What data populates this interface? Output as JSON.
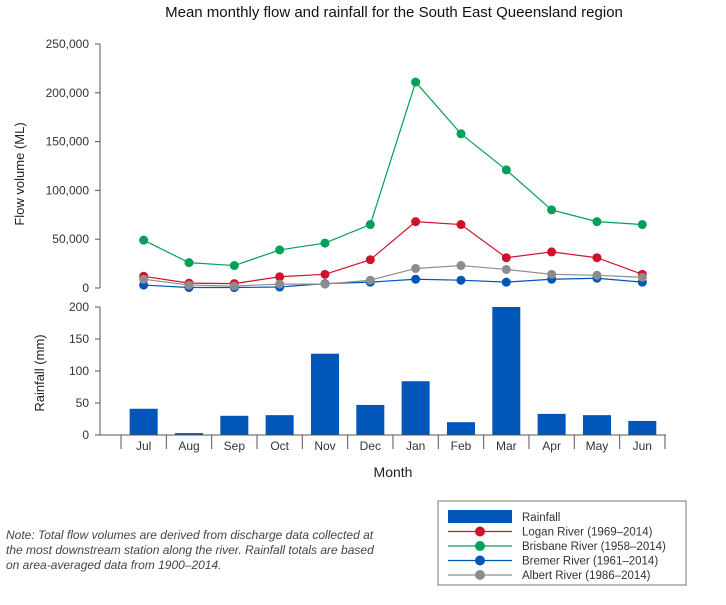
{
  "chart_data": {
    "type": "line+bar",
    "title": "Mean monthly flow and rainfall for the South East Queensland region",
    "categories": [
      "Jul",
      "Aug",
      "Sep",
      "Oct",
      "Nov",
      "Dec",
      "Jan",
      "Feb",
      "Mar",
      "Apr",
      "May",
      "Jun"
    ],
    "xlabel": "Month",
    "flow_panel": {
      "ylabel": "Flow volume (ML)",
      "ylim": [
        0,
        250000
      ],
      "yticks": [
        "0",
        "50,000",
        "100,000",
        "150,000",
        "200,000",
        "250,000"
      ],
      "series": [
        {
          "name": "Logan River (1969–2014)",
          "color": "#d0112b",
          "values": [
            12000,
            5000,
            4500,
            11500,
            14000,
            29000,
            68000,
            65000,
            31000,
            37000,
            31000,
            14000
          ]
        },
        {
          "name": "Brisbane River (1958–2014)",
          "color": "#00a05a",
          "values": [
            49000,
            26000,
            23000,
            39000,
            46000,
            65000,
            211000,
            158000,
            121000,
            80000,
            68000,
            65000
          ]
        },
        {
          "name": "Bremer River (1961–2014)",
          "color": "#0055b8",
          "values": [
            3000,
            500,
            500,
            1000,
            4500,
            6000,
            9000,
            8000,
            6000,
            9000,
            10000,
            6000
          ]
        },
        {
          "name": "Albert River (1986–2014)",
          "color": "#8c8c8c",
          "values": [
            9000,
            3000,
            2000,
            4000,
            4000,
            8000,
            20000,
            23000,
            19000,
            14000,
            13000,
            11000
          ]
        }
      ]
    },
    "rainfall_panel": {
      "ylabel": "Rainfall (mm)",
      "ylim": [
        0,
        200
      ],
      "yticks": [
        "0",
        "50",
        "100",
        "150",
        "200"
      ],
      "series": [
        {
          "name": "Rainfall",
          "color": "#0055b8",
          "values": [
            41,
            3,
            30,
            31,
            127,
            47,
            84,
            20,
            200,
            33,
            31,
            22
          ]
        }
      ]
    },
    "legend": {
      "placement": "bottom-right",
      "entries": [
        "Rainfall",
        "Logan River (1969–2014)",
        "Brisbane River (1958–2014)",
        "Bremer River (1961–2014)",
        "Albert River (1986–2014)"
      ]
    }
  },
  "note": "Note: Total flow volumes are derived from discharge data collected at the most downstream station along the river. Rainfall totals are based on area-averaged data from 1900–2014."
}
